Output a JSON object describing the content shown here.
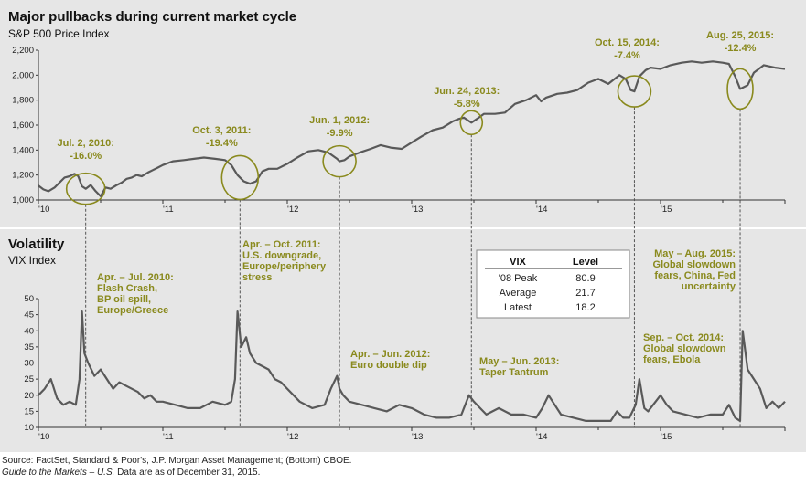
{
  "chart_data": [
    {
      "type": "line",
      "title": "Major pullbacks during current market cycle",
      "subtitle": "S&P 500 Price Index",
      "x_tick_labels": [
        "'10",
        "'11",
        "'12",
        "'13",
        "'14",
        "'15"
      ],
      "y_tick_labels": [
        "1,000",
        "1,200",
        "1,400",
        "1,600",
        "1,800",
        "2,000",
        "2,200"
      ],
      "ylim": [
        1000,
        2200
      ],
      "xlim": [
        2010.0,
        2016.0
      ],
      "grid": false,
      "series": [
        {
          "x": [
            2010.0,
            2010.04,
            2010.08,
            2010.13,
            2010.17,
            2010.21,
            2010.25,
            2010.29,
            2010.32,
            2010.35,
            2010.38,
            2010.42,
            2010.46,
            2010.5,
            2010.54,
            2010.58,
            2010.63,
            2010.67,
            2010.71,
            2010.75,
            2010.79,
            2010.83,
            2010.88,
            2010.92,
            2010.96,
            2011.0,
            2011.08,
            2011.17,
            2011.25,
            2011.33,
            2011.42,
            2011.5,
            2011.55,
            2011.6,
            2011.65,
            2011.7,
            2011.75,
            2011.8,
            2011.85,
            2011.92,
            2012.0,
            2012.08,
            2012.17,
            2012.25,
            2012.33,
            2012.4,
            2012.42,
            2012.46,
            2012.5,
            2012.58,
            2012.67,
            2012.75,
            2012.83,
            2012.92,
            2013.0,
            2013.08,
            2013.17,
            2013.25,
            2013.33,
            2013.38,
            2013.42,
            2013.48,
            2013.54,
            2013.58,
            2013.67,
            2013.75,
            2013.83,
            2013.92,
            2014.0,
            2014.04,
            2014.08,
            2014.17,
            2014.25,
            2014.33,
            2014.42,
            2014.5,
            2014.58,
            2014.67,
            2014.72,
            2014.76,
            2014.79,
            2014.83,
            2014.88,
            2014.92,
            2015.0,
            2015.08,
            2015.17,
            2015.25,
            2015.33,
            2015.42,
            2015.5,
            2015.55,
            2015.6,
            2015.64,
            2015.7,
            2015.75,
            2015.83,
            2015.92,
            2016.0
          ],
          "values": [
            1115,
            1085,
            1070,
            1100,
            1140,
            1180,
            1190,
            1210,
            1190,
            1110,
            1090,
            1120,
            1070,
            1030,
            1100,
            1090,
            1120,
            1140,
            1170,
            1180,
            1200,
            1190,
            1220,
            1240,
            1260,
            1280,
            1310,
            1320,
            1330,
            1340,
            1330,
            1320,
            1280,
            1200,
            1150,
            1130,
            1150,
            1230,
            1250,
            1250,
            1290,
            1340,
            1390,
            1400,
            1380,
            1330,
            1310,
            1320,
            1350,
            1380,
            1410,
            1440,
            1420,
            1410,
            1460,
            1510,
            1560,
            1580,
            1630,
            1650,
            1660,
            1620,
            1660,
            1690,
            1690,
            1700,
            1770,
            1800,
            1840,
            1790,
            1820,
            1850,
            1860,
            1880,
            1940,
            1970,
            1930,
            2000,
            1970,
            1880,
            1870,
            1990,
            2040,
            2060,
            2050,
            2080,
            2100,
            2110,
            2100,
            2110,
            2100,
            2090,
            1990,
            1890,
            1920,
            2020,
            2080,
            2060,
            2050
          ]
        }
      ],
      "annotations": [
        {
          "date_label": "Jul. 2, 2010:",
          "pct": "-16.0%"
        },
        {
          "date_label": "Oct. 3, 2011:",
          "pct": "-19.4%"
        },
        {
          "date_label": "Jun. 1, 2012:",
          "pct": "-9.9%"
        },
        {
          "date_label": "Jun. 24, 2013:",
          "pct": "-5.8%"
        },
        {
          "date_label": "Oct. 15, 2014:",
          "pct": "-7.4%"
        },
        {
          "date_label": "Aug. 25, 2015:",
          "pct": "-12.4%"
        }
      ]
    },
    {
      "type": "line",
      "title": "Volatility",
      "subtitle": "VIX Index",
      "x_tick_labels": [
        "'10",
        "'11",
        "'12",
        "'13",
        "'14",
        "'15"
      ],
      "y_tick_labels": [
        "10",
        "15",
        "20",
        "25",
        "30",
        "35",
        "40",
        "45",
        "50"
      ],
      "ylim": [
        10,
        50
      ],
      "xlim": [
        2010.0,
        2016.0
      ],
      "grid": false,
      "series": [
        {
          "x": [
            2010.0,
            2010.05,
            2010.1,
            2010.15,
            2010.2,
            2010.25,
            2010.3,
            2010.33,
            2010.35,
            2010.37,
            2010.4,
            2010.45,
            2010.5,
            2010.55,
            2010.6,
            2010.65,
            2010.7,
            2010.75,
            2010.8,
            2010.85,
            2010.9,
            2010.95,
            2011.0,
            2011.1,
            2011.2,
            2011.3,
            2011.4,
            2011.5,
            2011.55,
            2011.58,
            2011.6,
            2011.63,
            2011.67,
            2011.7,
            2011.75,
            2011.8,
            2011.85,
            2011.9,
            2011.95,
            2012.0,
            2012.1,
            2012.2,
            2012.3,
            2012.35,
            2012.4,
            2012.42,
            2012.45,
            2012.5,
            2012.6,
            2012.7,
            2012.8,
            2012.9,
            2013.0,
            2013.1,
            2013.2,
            2013.3,
            2013.4,
            2013.46,
            2013.5,
            2013.55,
            2013.6,
            2013.7,
            2013.8,
            2013.9,
            2014.0,
            2014.05,
            2014.1,
            2014.2,
            2014.3,
            2014.4,
            2014.5,
            2014.6,
            2014.65,
            2014.7,
            2014.75,
            2014.8,
            2014.83,
            2014.87,
            2014.9,
            2015.0,
            2015.05,
            2015.1,
            2015.2,
            2015.3,
            2015.4,
            2015.5,
            2015.55,
            2015.6,
            2015.64,
            2015.66,
            2015.7,
            2015.75,
            2015.8,
            2015.85,
            2015.9,
            2015.95,
            2016.0
          ],
          "values": [
            20,
            22,
            25,
            19,
            17,
            18,
            17,
            25,
            46,
            33,
            30,
            26,
            28,
            25,
            22,
            24,
            23,
            22,
            21,
            19,
            20,
            18,
            18,
            17,
            16,
            16,
            18,
            17,
            18,
            25,
            46,
            35,
            38,
            33,
            30,
            29,
            28,
            25,
            24,
            22,
            18,
            16,
            17,
            22,
            26,
            22,
            20,
            18,
            17,
            16,
            15,
            17,
            16,
            14,
            13,
            13,
            14,
            20,
            18,
            16,
            14,
            16,
            14,
            14,
            13,
            16,
            20,
            14,
            13,
            12,
            12,
            12,
            15,
            13,
            13,
            17,
            25,
            16,
            15,
            20,
            17,
            15,
            14,
            13,
            14,
            14,
            17,
            13,
            12,
            40,
            28,
            25,
            22,
            16,
            18,
            16,
            18
          ]
        }
      ],
      "annotations": [
        {
          "lines": [
            "Apr. – Jul. 2010:",
            "Flash Crash,",
            "BP oil spill,",
            "Europe/Greece"
          ]
        },
        {
          "lines": [
            "Apr. – Oct. 2011:",
            "U.S. downgrade,",
            "Europe/periphery",
            "stress"
          ]
        },
        {
          "lines": [
            "Apr. – Jun. 2012:",
            "Euro double dip"
          ]
        },
        {
          "lines": [
            "May – Jun. 2013:",
            "Taper Tantrum"
          ]
        },
        {
          "lines": [
            "Sep. – Oct. 2014:",
            "Global slowdown",
            "fears, Ebola"
          ]
        },
        {
          "lines": [
            "May – Aug. 2015:",
            "Global slowdown",
            "fears, China, Fed",
            "uncertainty"
          ]
        }
      ],
      "table": {
        "headers": [
          "VIX",
          "Level"
        ],
        "rows": [
          [
            "'08 Peak",
            "80.9"
          ],
          [
            "Average",
            "21.7"
          ],
          [
            "Latest",
            "18.2"
          ]
        ]
      }
    }
  ],
  "footer": {
    "source": "Source: FactSet, Standard & Poor's, J.P. Morgan Asset Management; (Bottom) CBOE.",
    "guide_title": "Guide to the Markets – U.S.",
    "guide_date": " Data are as of December 31, 2015."
  },
  "colors": {
    "panel": "#e6e6e6",
    "line": "#595959",
    "accent": "#8a8a1e"
  }
}
